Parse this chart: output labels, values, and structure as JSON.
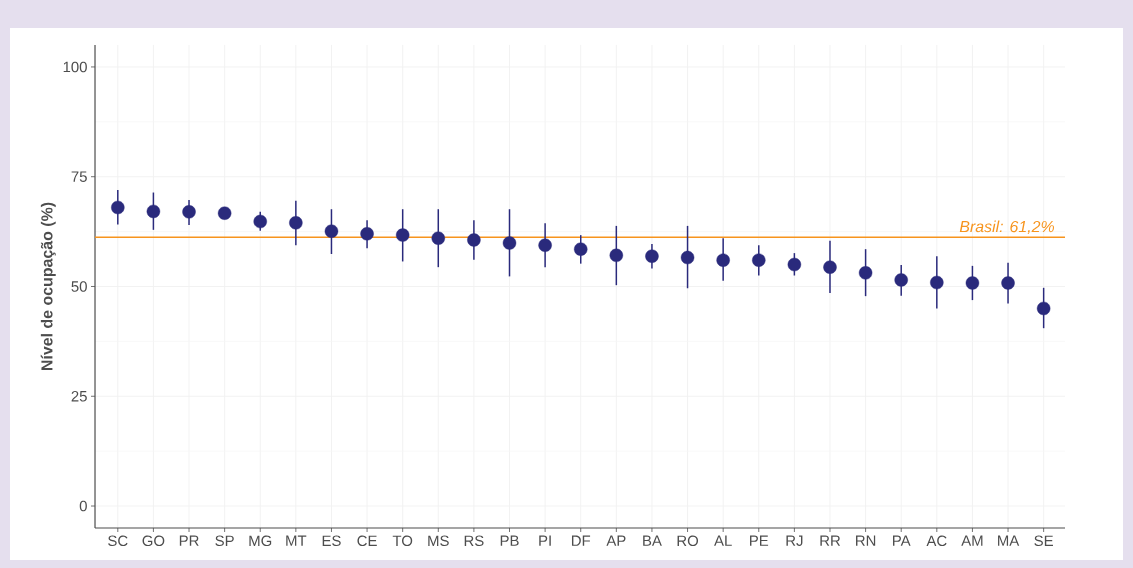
{
  "chart_data": {
    "type": "scatter",
    "ylabel": "Nível de ocupação (%)",
    "categories": [
      "SC",
      "GO",
      "PR",
      "SP",
      "MG",
      "MT",
      "ES",
      "CE",
      "TO",
      "MS",
      "RS",
      "PB",
      "PI",
      "DF",
      "AP",
      "BA",
      "RO",
      "AL",
      "PE",
      "RJ",
      "RR",
      "RN",
      "PA",
      "AC",
      "AM",
      "MA",
      "SE"
    ],
    "values": [
      68.0,
      67.1,
      67.0,
      66.7,
      64.8,
      64.5,
      62.6,
      62.0,
      61.7,
      61.0,
      60.6,
      59.9,
      59.4,
      58.5,
      57.1,
      56.9,
      56.6,
      56.0,
      56.0,
      55.0,
      54.4,
      53.1,
      51.5,
      50.9,
      50.8,
      50.8,
      45.0
    ],
    "errors": [
      [
        64.1,
        72.0
      ],
      [
        62.9,
        71.4
      ],
      [
        64.0,
        69.7
      ],
      null,
      [
        62.7,
        67.0
      ],
      [
        59.4,
        69.5
      ],
      [
        57.4,
        67.6
      ],
      [
        58.7,
        65.1
      ],
      [
        55.7,
        67.6
      ],
      [
        54.4,
        67.6
      ],
      [
        56.1,
        65.1
      ],
      [
        52.3,
        67.6
      ],
      [
        54.4,
        64.4
      ],
      [
        55.2,
        61.7
      ],
      [
        50.3,
        63.8
      ],
      [
        54.1,
        59.7
      ],
      [
        49.6,
        63.8
      ],
      [
        51.3,
        61.0
      ],
      [
        52.5,
        59.4
      ],
      [
        52.5,
        57.6
      ],
      [
        48.5,
        60.4
      ],
      [
        47.8,
        58.5
      ],
      [
        47.9,
        54.9
      ],
      [
        45.0,
        56.9
      ],
      [
        46.9,
        54.7
      ],
      [
        46.1,
        55.4
      ],
      [
        40.5,
        49.7
      ]
    ],
    "color": "#2a2a7c",
    "marker": "circle",
    "ylim": [
      -5,
      105
    ],
    "yticks": [
      0,
      25,
      50,
      75,
      100
    ],
    "grid": true,
    "ref_lines": [
      {
        "axis": "y",
        "value": 61.2,
        "label": "Brasil: 61,2%",
        "color": "#f7941d"
      }
    ]
  }
}
